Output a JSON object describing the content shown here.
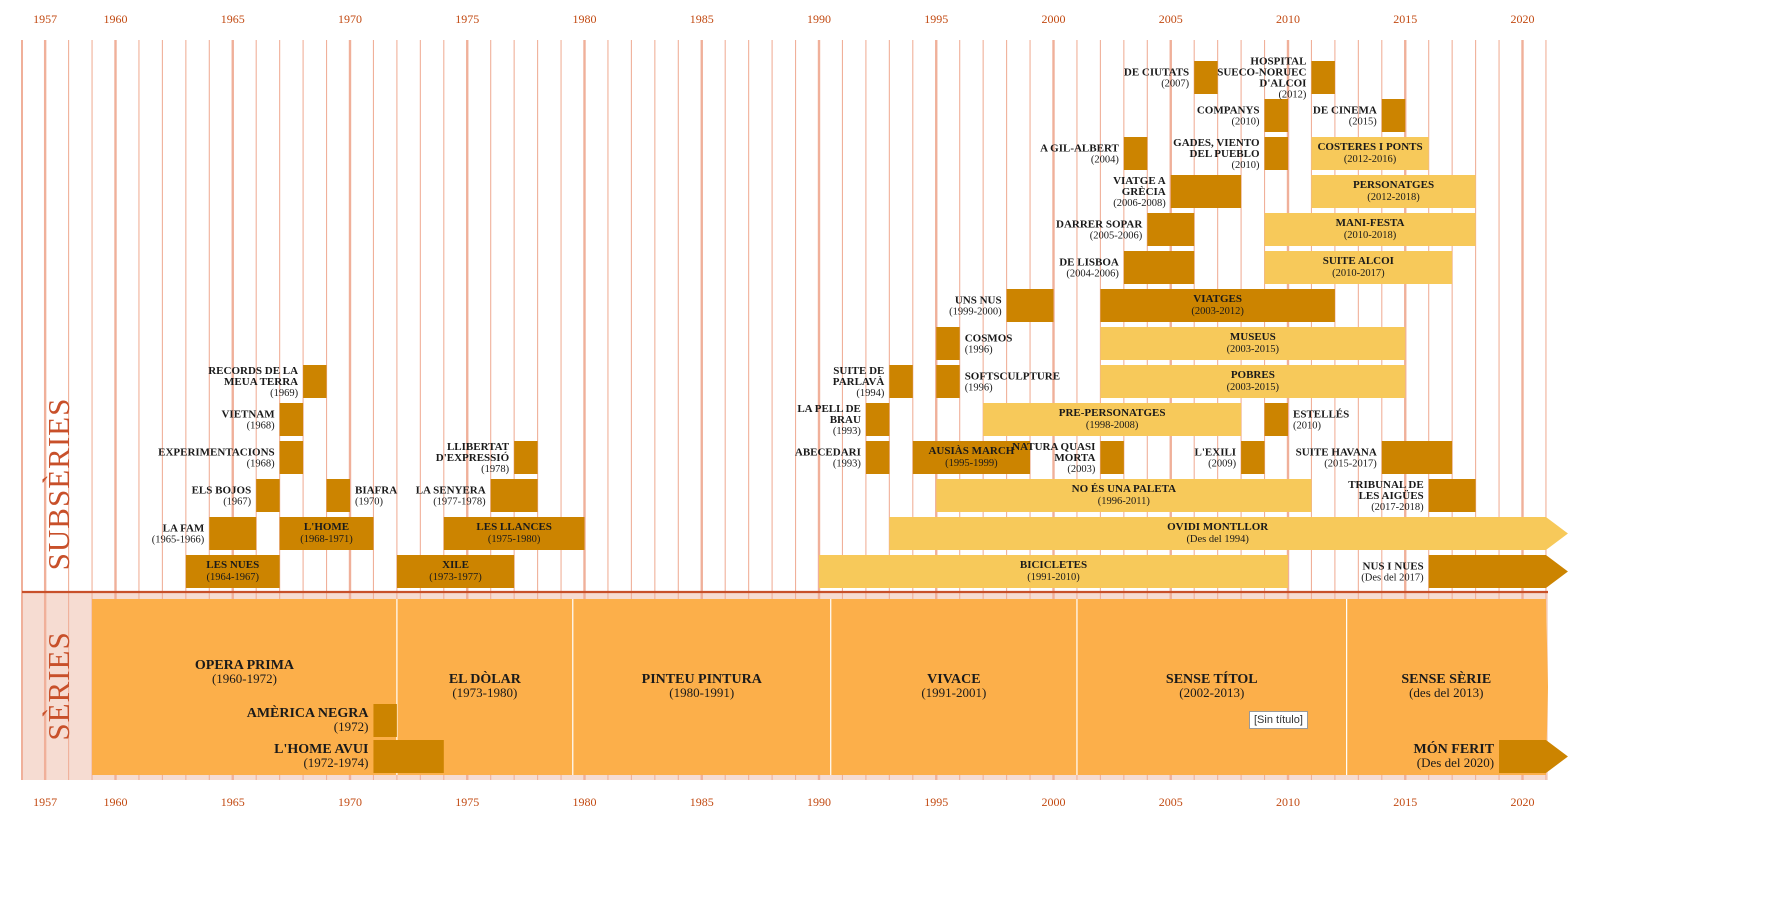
{
  "chart_data": {
    "type": "timeline",
    "x_ticks": [
      1957,
      1960,
      1965,
      1970,
      1975,
      1980,
      1985,
      1990,
      1995,
      2000,
      2005,
      2010,
      2015,
      2020
    ],
    "band_labels": {
      "subseries": "SUBSÈRIES",
      "series": "SÈRIES"
    },
    "tooltip": "[Sin título]",
    "colors": {
      "dark": "#cc8400",
      "light": "#f7c95a",
      "series": "#fcaf4a",
      "grid": "#f0b09a",
      "axis": "#c8502a",
      "band_bg": "#f6dcd2"
    },
    "series": [
      {
        "name": "OPERA PRIMA",
        "period": "(1960-1972)",
        "start": 1959,
        "end": 1972
      },
      {
        "name": "EL DÒLAR",
        "period": "(1973-1980)",
        "start": 1972,
        "end": 1979.5
      },
      {
        "name": "PINTEU PINTURA",
        "period": "(1980-1991)",
        "start": 1979.5,
        "end": 1990.5
      },
      {
        "name": "VIVACE",
        "period": "(1991-2001)",
        "start": 1990.5,
        "end": 2001
      },
      {
        "name": "SENSE TÍTOL",
        "period": "(2002-2013)",
        "start": 2001,
        "end": 2012.5
      },
      {
        "name": "SENSE SÈRIE",
        "period": "(des del 2013)",
        "start": 2012.5,
        "end": 2021
      }
    ],
    "series_subitems": [
      {
        "name": "AMÈRICA NEGRA",
        "period": "(1972)",
        "start": 1971,
        "end": 1972,
        "row": 0
      },
      {
        "name": "L'HOME AVUI",
        "period": "(1972-1974)",
        "start": 1971,
        "end": 1974,
        "row": 1
      },
      {
        "name": "MÓN FERIT",
        "period": "(Des del 2020)",
        "start": 2019,
        "end": 2021,
        "row": 1,
        "arrow": true
      }
    ],
    "subseries": [
      {
        "name": "LES NUES",
        "period": "(1964-1967)",
        "start": 1963,
        "end": 1967,
        "row": 0,
        "style": "dark",
        "label": "in"
      },
      {
        "name": "XILE",
        "period": "(1973-1977)",
        "start": 1972,
        "end": 1977,
        "row": 0,
        "style": "dark",
        "label": "in"
      },
      {
        "name": "BICICLETES",
        "period": "(1991-2010)",
        "start": 1990,
        "end": 2010,
        "row": 0,
        "style": "light",
        "label": "in"
      },
      {
        "name": "NUS I NUES",
        "period": "(Des del 2017)",
        "start": 2016,
        "end": 2021,
        "row": 0,
        "style": "dark",
        "label": "left",
        "arrow": true
      },
      {
        "name": "LA FAM",
        "period": "(1965-1966)",
        "start": 1964,
        "end": 1966,
        "row": 1,
        "style": "dark",
        "label": "left"
      },
      {
        "name": "L'HOME",
        "period": "(1968-1971)",
        "start": 1967,
        "end": 1971,
        "row": 1,
        "style": "dark",
        "label": "in"
      },
      {
        "name": "LES LLANCES",
        "period": "(1975-1980)",
        "start": 1974,
        "end": 1980,
        "row": 1,
        "style": "dark",
        "label": "in"
      },
      {
        "name": "OVIDI MONTLLOR",
        "period": "(Des del 1994)",
        "start": 1993,
        "end": 2021,
        "row": 1,
        "style": "light",
        "label": "in",
        "arrow": true
      },
      {
        "name": "ELS BOJOS",
        "period": "(1967)",
        "start": 1966,
        "end": 1967,
        "row": 2,
        "style": "dark",
        "label": "left"
      },
      {
        "name": "BIAFRA",
        "period": "(1970)",
        "start": 1969,
        "end": 1970,
        "row": 2,
        "style": "dark",
        "label": "right"
      },
      {
        "name": "LA SENYERA",
        "period": "(1977-1978)",
        "start": 1976,
        "end": 1978,
        "row": 2,
        "style": "dark",
        "label": "left"
      },
      {
        "name": "NO ÉS UNA PALETA",
        "period": "(1996-2011)",
        "start": 1995,
        "end": 2011,
        "row": 2,
        "style": "light",
        "label": "in"
      },
      {
        "name": "TRIBUNAL DE LES AIGÜES",
        "period": "(2017-2018)",
        "start": 2016,
        "end": 2018,
        "row": 2,
        "style": "dark",
        "label": "left"
      },
      {
        "name": "EXPERIMENTACIONS",
        "period": "(1968)",
        "start": 1967,
        "end": 1968,
        "row": 3,
        "style": "dark",
        "label": "left"
      },
      {
        "name": "LLIBERTAT D'EXPRESSIÓ",
        "period": "(1978)",
        "start": 1977,
        "end": 1978,
        "row": 3,
        "style": "dark",
        "label": "left"
      },
      {
        "name": "ABECEDARI",
        "period": "(1993)",
        "start": 1992,
        "end": 1993,
        "row": 3,
        "style": "dark",
        "label": "left"
      },
      {
        "name": "AUSIÀS MARCH",
        "period": "(1995-1999)",
        "start": 1994,
        "end": 1999,
        "row": 3,
        "style": "dark",
        "label": "in"
      },
      {
        "name": "NATURA QUASI MORTA",
        "period": "(2003)",
        "start": 2002,
        "end": 2003,
        "row": 3,
        "style": "dark",
        "label": "left"
      },
      {
        "name": "L'EXILI",
        "period": "(2009)",
        "start": 2008,
        "end": 2009,
        "row": 3,
        "style": "dark",
        "label": "left"
      },
      {
        "name": "SUITE HAVANA",
        "period": "(2015-2017)",
        "start": 2014,
        "end": 2017,
        "row": 3,
        "style": "dark",
        "label": "left"
      },
      {
        "name": "VIETNAM",
        "period": "(1968)",
        "start": 1967,
        "end": 1968,
        "row": 4,
        "style": "dark",
        "label": "left"
      },
      {
        "name": "LA PELL DE BRAU",
        "period": "(1993)",
        "start": 1992,
        "end": 1993,
        "row": 4,
        "style": "dark",
        "label": "left"
      },
      {
        "name": "PRE-PERSONATGES",
        "period": "(1998-2008)",
        "start": 1997,
        "end": 2008,
        "row": 4,
        "style": "light",
        "label": "in"
      },
      {
        "name": "ESTELLÉS",
        "period": "(2010)",
        "start": 2009,
        "end": 2010,
        "row": 4,
        "style": "dark",
        "label": "right"
      },
      {
        "name": "RECORDS DE LA MEUA TERRA",
        "period": "(1969)",
        "start": 1968,
        "end": 1969,
        "row": 5,
        "style": "dark",
        "label": "left"
      },
      {
        "name": "SUITE DE PARLAVÀ",
        "period": "(1994)",
        "start": 1993,
        "end": 1994,
        "row": 5,
        "style": "dark",
        "label": "left"
      },
      {
        "name": "SOFTSCULPTURE",
        "period": "(1996)",
        "start": 1995,
        "end": 1996,
        "row": 5,
        "style": "dark",
        "label": "right"
      },
      {
        "name": "POBRES",
        "period": "(2003-2015)",
        "start": 2002,
        "end": 2015,
        "row": 5,
        "style": "light",
        "label": "in"
      },
      {
        "name": "COSMOS",
        "period": "(1996)",
        "start": 1995,
        "end": 1996,
        "row": 6,
        "style": "dark",
        "label": "right"
      },
      {
        "name": "MUSEUS",
        "period": "(2003-2015)",
        "start": 2002,
        "end": 2015,
        "row": 6,
        "style": "light",
        "label": "in"
      },
      {
        "name": "UNS NUS",
        "period": "(1999-2000)",
        "start": 1998,
        "end": 2000,
        "row": 7,
        "style": "dark",
        "label": "left"
      },
      {
        "name": "VIATGES",
        "period": "(2003-2012)",
        "start": 2002,
        "end": 2012,
        "row": 7,
        "style": "dark",
        "label": "in"
      },
      {
        "name": "DE LISBOA",
        "period": "(2004-2006)",
        "start": 2003,
        "end": 2006,
        "row": 8,
        "style": "dark",
        "label": "left"
      },
      {
        "name": "SUITE ALCOI",
        "period": "(2010-2017)",
        "start": 2009,
        "end": 2017,
        "row": 8,
        "style": "light",
        "label": "in"
      },
      {
        "name": "DARRER SOPAR",
        "period": "(2005-2006)",
        "start": 2004,
        "end": 2006,
        "row": 9,
        "style": "dark",
        "label": "left"
      },
      {
        "name": "MANI-FESTA",
        "period": "(2010-2018)",
        "start": 2009,
        "end": 2018,
        "row": 9,
        "style": "light",
        "label": "in"
      },
      {
        "name": "VIATGE A GRÈCIA",
        "period": "(2006-2008)",
        "start": 2005,
        "end": 2008,
        "row": 10,
        "style": "dark",
        "label": "left"
      },
      {
        "name": "PERSONATGES",
        "period": "(2012-2018)",
        "start": 2011,
        "end": 2018,
        "row": 10,
        "style": "light",
        "label": "in"
      },
      {
        "name": "A GIL-ALBERT",
        "period": "(2004)",
        "start": 2003,
        "end": 2004,
        "row": 11,
        "style": "dark",
        "label": "left"
      },
      {
        "name": "GADES, VIENTO DEL PUEBLO",
        "period": "(2010)",
        "start": 2009,
        "end": 2010,
        "row": 11,
        "style": "dark",
        "label": "left"
      },
      {
        "name": "COSTERES I PONTS",
        "period": "(2012-2016)",
        "start": 2011,
        "end": 2016,
        "row": 11,
        "style": "light",
        "label": "in"
      },
      {
        "name": "COMPANYS",
        "period": "(2010)",
        "start": 2009,
        "end": 2010,
        "row": 12,
        "style": "dark",
        "label": "left"
      },
      {
        "name": "DE CINEMA",
        "period": "(2015)",
        "start": 2014,
        "end": 2015,
        "row": 12,
        "style": "dark",
        "label": "left"
      },
      {
        "name": "DE CIUTATS",
        "period": "(2007)",
        "start": 2006,
        "end": 2007,
        "row": 13,
        "style": "dark",
        "label": "left"
      },
      {
        "name": "HOSPITAL SUECO-NORUEC D'ALCOI",
        "period": "(2012)",
        "start": 2011,
        "end": 2012,
        "row": 13,
        "style": "dark",
        "label": "left"
      }
    ]
  }
}
